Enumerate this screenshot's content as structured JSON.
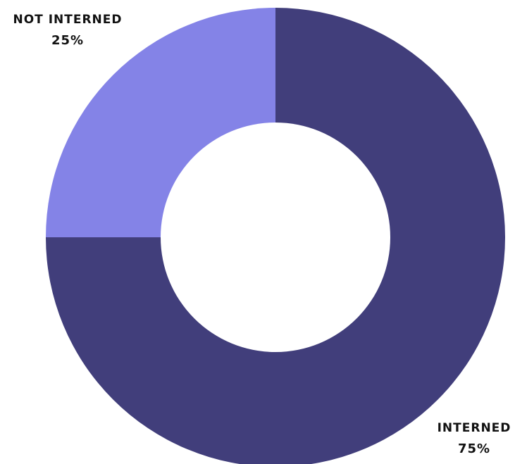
{
  "chart_data": {
    "type": "pie",
    "subtype": "donut",
    "slices": [
      {
        "label": "INTERNED",
        "value": 75,
        "percent_label": "75%",
        "color": "#413e7b"
      },
      {
        "label": "NOT INTERNED",
        "value": 25,
        "percent_label": "25%",
        "color": "#8483e7"
      }
    ],
    "start_angle_deg": 0,
    "direction": "clockwise",
    "title": ""
  }
}
